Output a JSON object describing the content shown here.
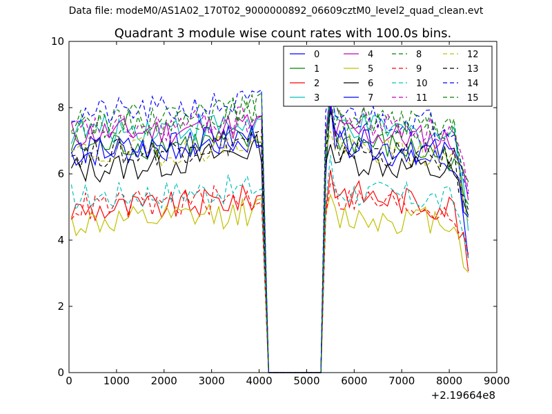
{
  "suptitle": "Data file: modeM0/AS1A02_170T02_9000000892_06609cztM0_level2_quad_clean.evt",
  "chart_data": {
    "type": "line",
    "title": "Quadrant 3 module wise count rates with 100.0s bins.",
    "xlabel": "",
    "ylabel": "",
    "x_offset_label": "+2.19664e8",
    "xlim": [
      0,
      9000
    ],
    "ylim": [
      0,
      10
    ],
    "xticks": [
      0,
      1000,
      2000,
      3000,
      4000,
      5000,
      6000,
      7000,
      8000,
      9000
    ],
    "yticks": [
      0,
      2,
      4,
      6,
      8,
      10
    ],
    "x_tick_labels": [
      "0",
      "1000",
      "2000",
      "3000",
      "4000",
      "5000",
      "6000",
      "7000",
      "8000",
      "9000"
    ],
    "y_tick_labels": [
      "0",
      "2",
      "4",
      "6",
      "8",
      "10"
    ],
    "grid": false,
    "legend_position": "top-right",
    "legend_columns": 4,
    "gap_x": [
      4200,
      4300,
      4400,
      4500,
      4600,
      4700,
      4800,
      4900,
      5000,
      5100,
      5200,
      5300
    ],
    "series": [
      {
        "name": "0",
        "color": "#0000ff",
        "dash": "solid"
      },
      {
        "name": "1",
        "color": "#008000",
        "dash": "solid"
      },
      {
        "name": "2",
        "color": "#ff0000",
        "dash": "solid"
      },
      {
        "name": "3",
        "color": "#00bfbf",
        "dash": "solid"
      },
      {
        "name": "4",
        "color": "#bf00bf",
        "dash": "solid"
      },
      {
        "name": "5",
        "color": "#bfbf00",
        "dash": "solid"
      },
      {
        "name": "6",
        "color": "#000000",
        "dash": "solid"
      },
      {
        "name": "7",
        "color": "#0000ff",
        "dash": "solid"
      },
      {
        "name": "8",
        "color": "#008000",
        "dash": "dashed"
      },
      {
        "name": "9",
        "color": "#ff0000",
        "dash": "dashed"
      },
      {
        "name": "10",
        "color": "#00bfbf",
        "dash": "dashed"
      },
      {
        "name": "11",
        "color": "#bf00bf",
        "dash": "dashed"
      },
      {
        "name": "12",
        "color": "#bfbf00",
        "dash": "dashed"
      },
      {
        "name": "13",
        "color": "#000000",
        "dash": "dashed"
      },
      {
        "name": "14",
        "color": "#0000ff",
        "dash": "dashed"
      },
      {
        "name": "15",
        "color": "#008000",
        "dash": "dashed"
      }
    ],
    "series_levels": {
      "segment1_x": [
        50,
        4100
      ],
      "segment2_x": [
        5400,
        8450
      ],
      "end_x": 8450,
      "levels": [
        [
          6.6,
          6.8,
          7.0,
          6.3,
          7.0,
          5.0,
          3.0
        ],
        [
          6.8,
          6.9,
          7.0,
          6.5,
          7.1,
          5.3,
          4.5
        ],
        [
          4.9,
          5.0,
          5.3,
          5.0,
          5.5,
          3.8,
          2.8
        ],
        [
          7.3,
          7.4,
          7.5,
          7.1,
          7.5,
          5.8,
          4.2
        ],
        [
          7.2,
          7.3,
          7.5,
          7.0,
          7.3,
          5.8,
          4.8
        ],
        [
          4.5,
          4.6,
          4.9,
          4.6,
          4.7,
          3.4,
          3.3
        ],
        [
          6.1,
          6.3,
          6.8,
          6.0,
          6.5,
          5.0,
          4.3
        ],
        [
          6.7,
          6.8,
          7.2,
          6.6,
          7.0,
          5.2,
          4.7
        ],
        [
          7.5,
          7.6,
          8.0,
          7.3,
          7.6,
          6.0,
          5.1
        ],
        [
          5.0,
          5.1,
          5.3,
          4.9,
          5.3,
          3.8,
          3.5
        ],
        [
          5.3,
          5.4,
          5.6,
          5.2,
          5.5,
          4.2,
          3.7
        ],
        [
          7.3,
          7.4,
          7.7,
          7.2,
          7.7,
          6.1,
          5.0
        ],
        [
          6.6,
          6.7,
          7.0,
          6.5,
          6.8,
          5.3,
          4.6
        ],
        [
          6.6,
          6.7,
          7.1,
          6.4,
          6.8,
          5.2,
          4.4
        ],
        [
          7.8,
          7.9,
          8.2,
          7.5,
          7.8,
          6.2,
          5.2
        ],
        [
          7.6,
          7.7,
          8.0,
          7.4,
          7.7,
          6.0,
          5.1
        ]
      ]
    }
  }
}
